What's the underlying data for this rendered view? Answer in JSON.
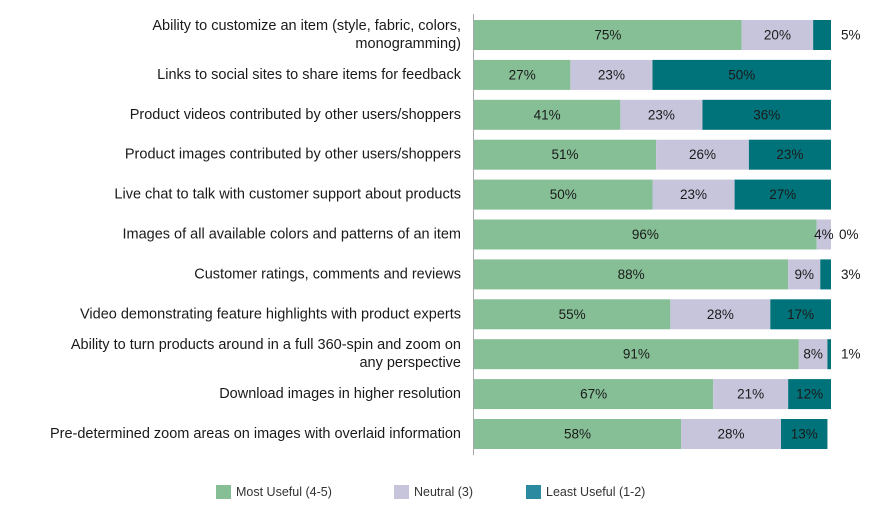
{
  "chart_data": {
    "type": "bar",
    "orientation": "horizontal",
    "stacked": true,
    "categories": [
      [
        "Ability to customize an item (style, fabric, colors,",
        "monogramming)"
      ],
      [
        "Links to social sites to share items for feedback"
      ],
      [
        "Product videos contributed by other users/shoppers"
      ],
      [
        "Product images contributed by other users/shoppers"
      ],
      [
        "Live chat to talk with customer support about products"
      ],
      [
        "Images of all available colors and patterns of an item"
      ],
      [
        "Customer ratings, comments and reviews"
      ],
      [
        "Video demonstrating feature highlights with product experts"
      ],
      [
        "Ability to turn products around in a full 360-spin and zoom on",
        "any perspective"
      ],
      [
        "Download images in higher resolution"
      ],
      [
        "Pre-determined zoom areas on images with overlaid information"
      ]
    ],
    "series": [
      {
        "name": "Most  Useful (4-5)",
        "color": "#86bf96",
        "values": [
          75,
          27,
          41,
          51,
          50,
          96,
          88,
          55,
          91,
          67,
          58
        ]
      },
      {
        "name": "Neutral (3)",
        "color": "#c7c5dc",
        "values": [
          20,
          23,
          23,
          26,
          23,
          4,
          9,
          28,
          8,
          21,
          28
        ]
      },
      {
        "name": "Least Useful (1-2)",
        "color": "#00727a",
        "values": [
          5,
          50,
          36,
          23,
          27,
          0,
          3,
          17,
          1,
          12,
          13
        ]
      }
    ],
    "value_format": "percent",
    "grid": false,
    "legend_position": "bottom"
  }
}
